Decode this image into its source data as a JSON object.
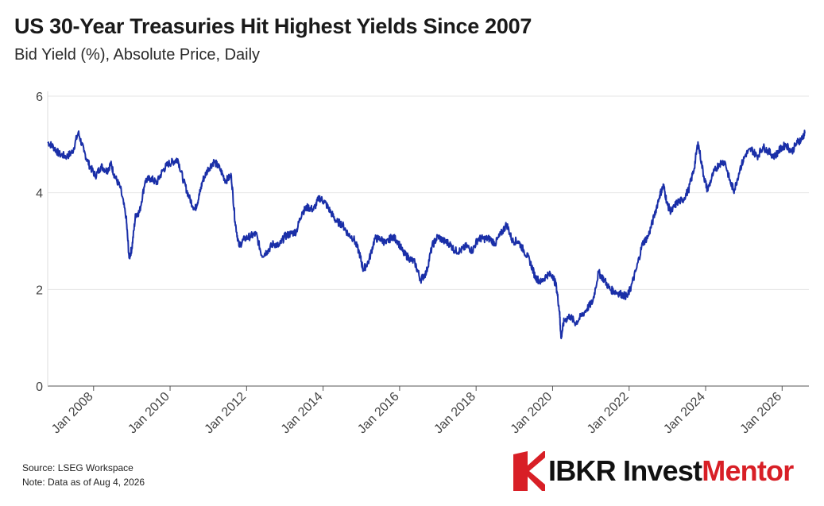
{
  "header": {
    "title": "US 30-Year Treasuries Hit Highest Yields Since 2007",
    "subtitle": "Bid Yield (%), Absolute Price, Daily"
  },
  "footer": {
    "source": "Source: LSEG Workspace",
    "note": "Note: Data as of Aug 4, 2026"
  },
  "logo": {
    "part1": "IBKR Invest",
    "part2": "Mentor"
  },
  "colors": {
    "line": "#1a2fa8",
    "grid": "#e6e6e6",
    "brand_red": "#d81f26"
  },
  "chart_data": {
    "type": "line",
    "title": "US 30-Year Treasuries Hit Highest Yields Since 2007",
    "subtitle": "Bid Yield (%), Absolute Price, Daily",
    "xlabel": "",
    "ylabel": "",
    "ylim": [
      0,
      6
    ],
    "xlim": [
      2006.8,
      2026.7
    ],
    "y_ticks": [
      0,
      2,
      4,
      6
    ],
    "x_ticks": [
      {
        "label": "Jan 2008",
        "value": 2008
      },
      {
        "label": "Jan 2010",
        "value": 2010
      },
      {
        "label": "Jan 2012",
        "value": 2012
      },
      {
        "label": "Jan 2014",
        "value": 2014
      },
      {
        "label": "Jan 2016",
        "value": 2016
      },
      {
        "label": "Jan 2018",
        "value": 2018
      },
      {
        "label": "Jan 2020",
        "value": 2020
      },
      {
        "label": "Jan 2022",
        "value": 2022
      },
      {
        "label": "Jan 2024",
        "value": 2024
      },
      {
        "label": "Jan 2026",
        "value": 2026
      }
    ],
    "grid": true,
    "series": [
      {
        "x": [
          2006.8,
          2006.95,
          2007.1,
          2007.3,
          2007.45,
          2007.6,
          2007.75,
          2007.9,
          2008.05,
          2008.2,
          2008.35,
          2008.45,
          2008.55,
          2008.7,
          2008.85,
          2008.93,
          2009.0,
          2009.1,
          2009.2,
          2009.35,
          2009.5,
          2009.65,
          2009.8,
          2009.95,
          2010.1,
          2010.2,
          2010.35,
          2010.5,
          2010.65,
          2010.75,
          2010.85,
          2011.0,
          2011.15,
          2011.3,
          2011.45,
          2011.6,
          2011.7,
          2011.8,
          2011.95,
          2012.1,
          2012.25,
          2012.4,
          2012.55,
          2012.7,
          2012.85,
          2013.0,
          2013.15,
          2013.3,
          2013.45,
          2013.6,
          2013.75,
          2013.9,
          2014.05,
          2014.2,
          2014.35,
          2014.5,
          2014.65,
          2014.8,
          2014.95,
          2015.05,
          2015.2,
          2015.35,
          2015.5,
          2015.65,
          2015.8,
          2015.95,
          2016.1,
          2016.25,
          2016.4,
          2016.55,
          2016.7,
          2016.85,
          2017.0,
          2017.15,
          2017.3,
          2017.45,
          2017.6,
          2017.75,
          2017.9,
          2018.05,
          2018.2,
          2018.35,
          2018.5,
          2018.65,
          2018.8,
          2018.95,
          2019.1,
          2019.25,
          2019.4,
          2019.55,
          2019.7,
          2019.85,
          2020.0,
          2020.1,
          2020.18,
          2020.22,
          2020.3,
          2020.45,
          2020.6,
          2020.75,
          2020.9,
          2021.05,
          2021.2,
          2021.35,
          2021.5,
          2021.65,
          2021.8,
          2021.95,
          2022.05,
          2022.2,
          2022.35,
          2022.5,
          2022.65,
          2022.8,
          2022.9,
          2023.0,
          2023.1,
          2023.25,
          2023.4,
          2023.55,
          2023.7,
          2023.8,
          2023.95,
          2024.05,
          2024.2,
          2024.35,
          2024.5,
          2024.65,
          2024.75,
          2024.9,
          2025.05,
          2025.2,
          2025.35,
          2025.5,
          2025.65,
          2025.8,
          2025.95,
          2026.1,
          2026.25,
          2026.4,
          2026.5,
          2026.6
        ],
        "y": [
          5.05,
          4.95,
          4.8,
          4.75,
          4.85,
          5.25,
          4.85,
          4.55,
          4.35,
          4.55,
          4.45,
          4.6,
          4.35,
          4.1,
          3.5,
          2.65,
          2.85,
          3.55,
          3.6,
          4.25,
          4.3,
          4.2,
          4.45,
          4.6,
          4.65,
          4.7,
          4.25,
          3.9,
          3.65,
          3.9,
          4.25,
          4.5,
          4.65,
          4.5,
          4.25,
          4.35,
          3.4,
          2.9,
          3.05,
          3.1,
          3.15,
          2.7,
          2.8,
          2.95,
          2.9,
          3.1,
          3.15,
          3.2,
          3.6,
          3.7,
          3.65,
          3.9,
          3.8,
          3.6,
          3.4,
          3.35,
          3.15,
          3.05,
          2.75,
          2.4,
          2.6,
          3.05,
          3.05,
          2.95,
          3.1,
          3.0,
          2.75,
          2.65,
          2.55,
          2.2,
          2.35,
          2.9,
          3.1,
          3.0,
          2.95,
          2.8,
          2.8,
          2.9,
          2.8,
          3.05,
          3.05,
          3.05,
          2.95,
          3.15,
          3.35,
          3.0,
          3.0,
          2.8,
          2.6,
          2.25,
          2.15,
          2.3,
          2.3,
          2.05,
          1.55,
          1.0,
          1.35,
          1.45,
          1.3,
          1.45,
          1.6,
          1.75,
          2.35,
          2.2,
          2.0,
          1.95,
          1.9,
          1.85,
          2.05,
          2.45,
          2.95,
          3.1,
          3.5,
          3.95,
          4.15,
          3.75,
          3.6,
          3.8,
          3.85,
          4.05,
          4.5,
          5.05,
          4.35,
          4.05,
          4.4,
          4.6,
          4.65,
          4.2,
          4.05,
          4.5,
          4.8,
          4.9,
          4.75,
          4.95,
          4.85,
          4.75,
          4.9,
          5.0,
          4.85,
          5.05,
          5.1,
          5.25
        ]
      }
    ]
  }
}
